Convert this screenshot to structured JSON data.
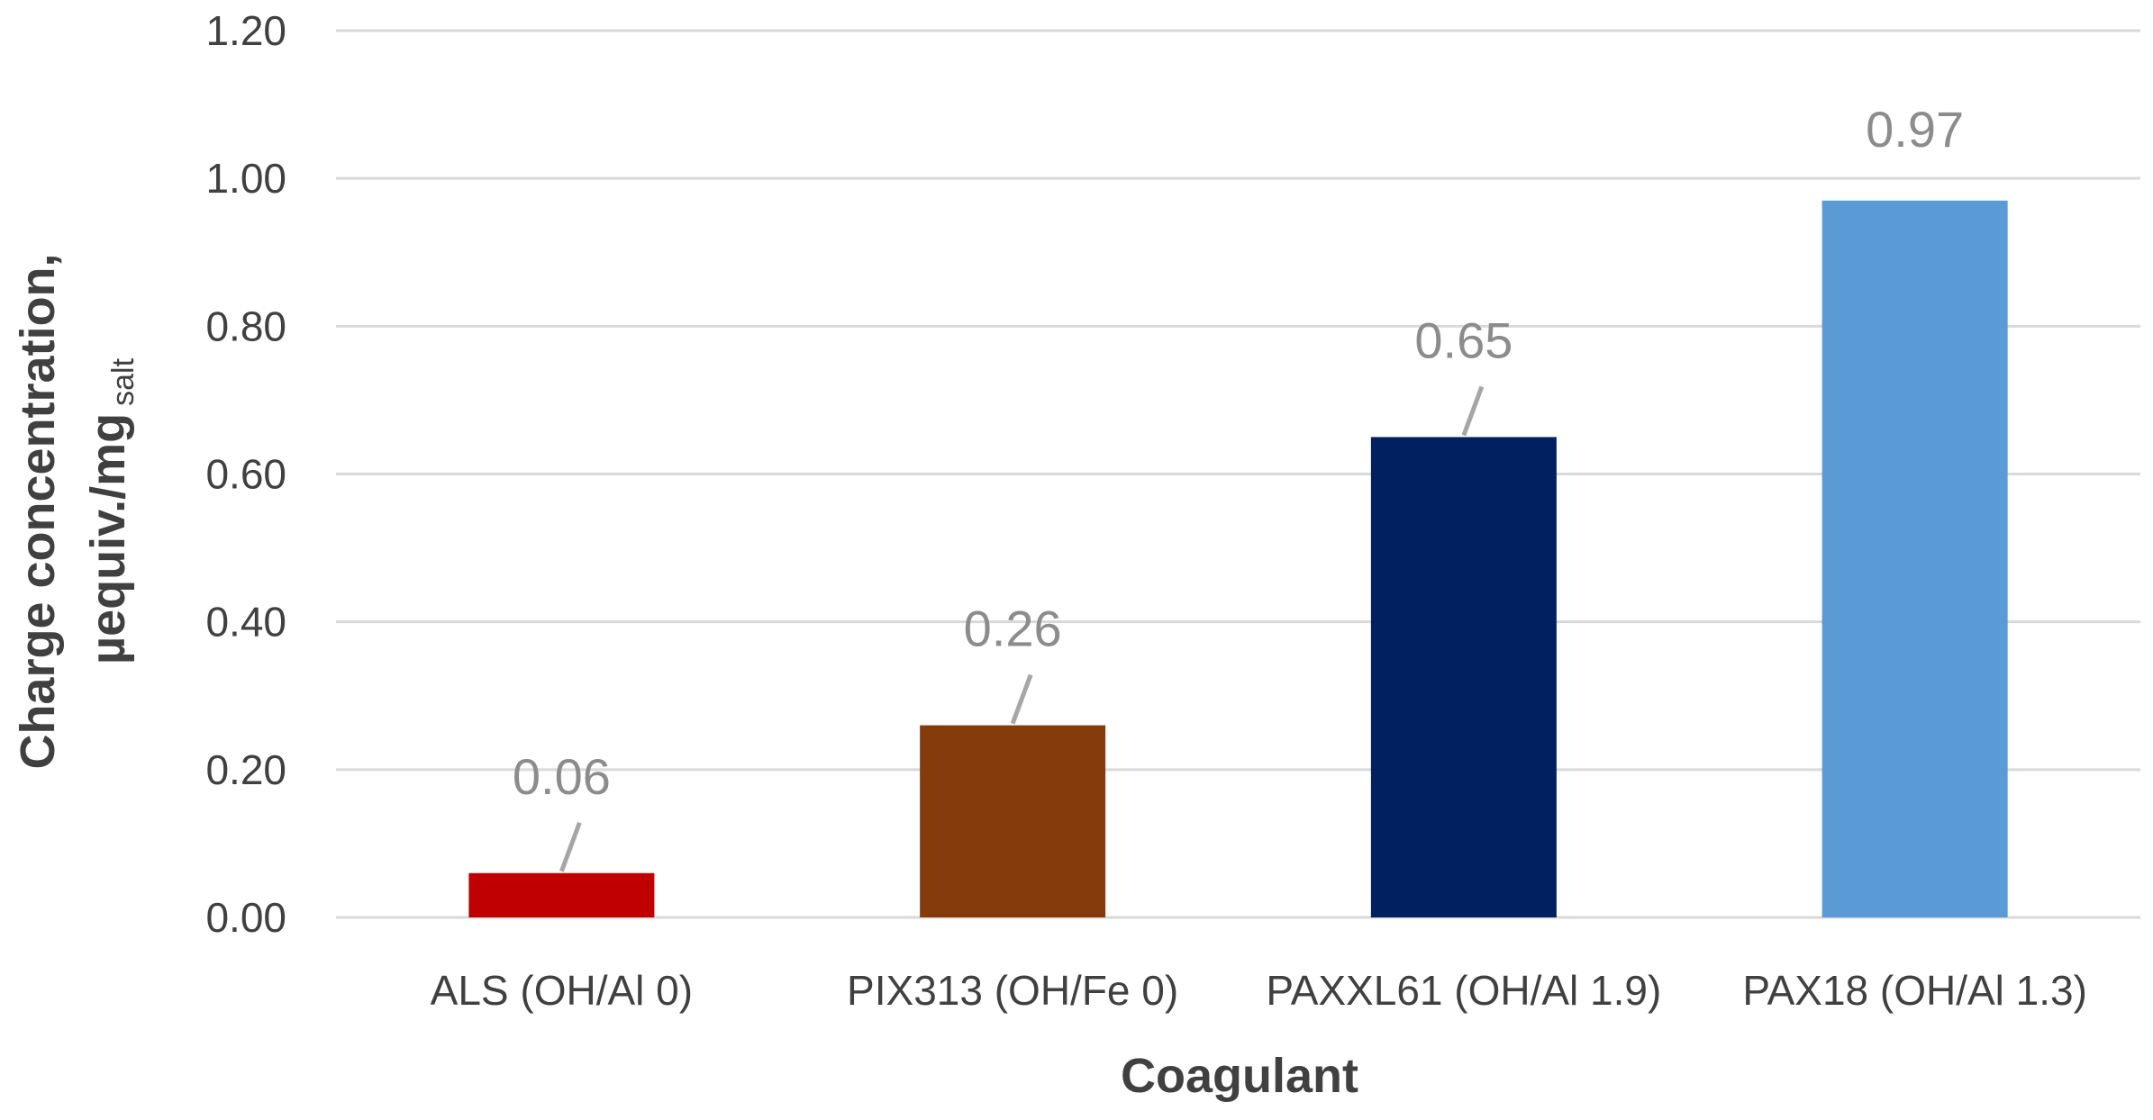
{
  "chart_data": {
    "type": "bar",
    "categories": [
      "ALS (OH/Al 0)",
      "PIX313 (OH/Fe 0)",
      "PAXXL61 (OH/Al 1.9)",
      "PAX18 (OH/Al 1.3)"
    ],
    "values": [
      0.06,
      0.26,
      0.65,
      0.97
    ],
    "data_labels": [
      "0.06",
      "0.26",
      "0.65",
      "0.97"
    ],
    "colors": [
      "#c00000",
      "#843c0c",
      "#002060",
      "#5b9bd5"
    ],
    "xlabel": "Coagulant",
    "ylabel_line1": "Charge concentration,",
    "ylabel_line2_main": "µequiv./mg",
    "ylabel_line2_sub": "salt",
    "ylim": [
      0,
      1.2
    ],
    "yticks": [
      "0.00",
      "0.20",
      "0.40",
      "0.60",
      "0.80",
      "1.00",
      "1.20"
    ],
    "grid": true,
    "legend": "none"
  }
}
